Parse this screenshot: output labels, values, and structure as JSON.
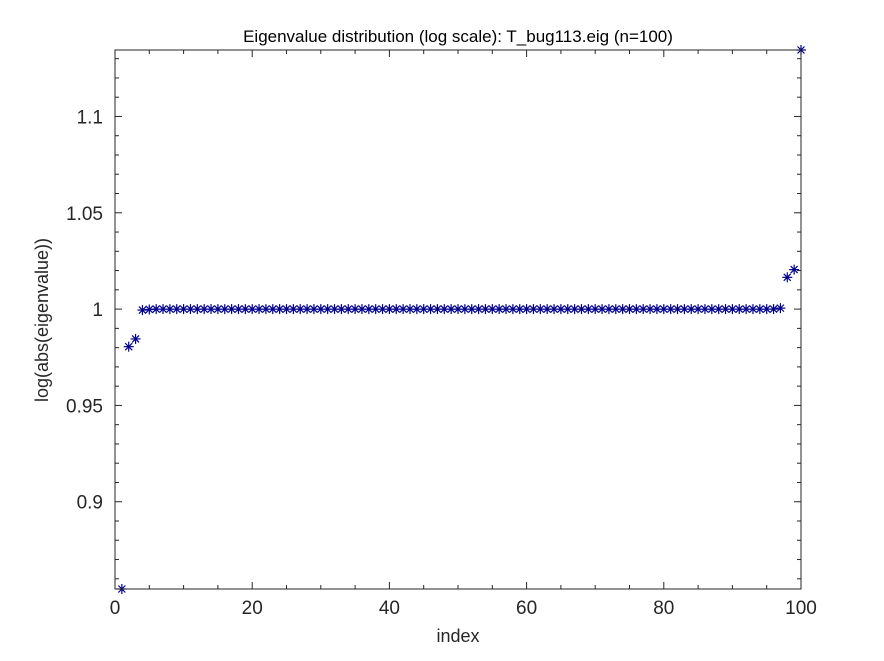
{
  "chart_data": {
    "type": "scatter",
    "title": "Eigenvalue distribution (log scale): T_bug113.eig (n=100)",
    "xlabel": "index",
    "ylabel": "log(abs(eigenvalue))",
    "xlim": [
      0,
      100
    ],
    "ylim": [
      0.8547,
      1.1345
    ],
    "xticks": [
      0,
      20,
      40,
      60,
      80,
      100
    ],
    "xtick_labels": [
      "0",
      "20",
      "40",
      "60",
      "80",
      "100"
    ],
    "yticks": [
      0.9,
      0.95,
      1,
      1.05,
      1.1
    ],
    "ytick_labels": [
      "0.9",
      "0.95",
      "1",
      "1.05",
      "1.1"
    ],
    "grid": false,
    "marker": "asterisk",
    "marker_color": "#00008b",
    "series": [
      {
        "x": [
          1,
          2,
          3,
          4,
          5,
          6,
          7,
          8,
          9,
          10,
          11,
          12,
          13,
          14,
          15,
          16,
          17,
          18,
          19,
          20,
          21,
          22,
          23,
          24,
          25,
          26,
          27,
          28,
          29,
          30,
          31,
          32,
          33,
          34,
          35,
          36,
          37,
          38,
          39,
          40,
          41,
          42,
          43,
          44,
          45,
          46,
          47,
          48,
          49,
          50,
          51,
          52,
          53,
          54,
          55,
          56,
          57,
          58,
          59,
          60,
          61,
          62,
          63,
          64,
          65,
          66,
          67,
          68,
          69,
          70,
          71,
          72,
          73,
          74,
          75,
          76,
          77,
          78,
          79,
          80,
          81,
          82,
          83,
          84,
          85,
          86,
          87,
          88,
          89,
          90,
          91,
          92,
          93,
          94,
          95,
          96,
          97,
          98,
          99,
          100
        ],
        "y": [
          0.8547,
          0.9805,
          0.9845,
          0.9995,
          0.9998,
          1.0,
          1.0,
          1.0,
          1.0,
          1.0,
          1.0,
          1.0,
          1.0,
          1.0,
          1.0,
          1.0,
          1.0,
          1.0,
          1.0,
          1.0,
          1.0,
          1.0,
          1.0,
          1.0,
          1.0,
          1.0,
          1.0,
          1.0,
          1.0,
          1.0,
          1.0,
          1.0,
          1.0,
          1.0,
          1.0,
          1.0,
          1.0,
          1.0,
          1.0,
          1.0,
          1.0,
          1.0,
          1.0,
          1.0,
          1.0,
          1.0,
          1.0,
          1.0,
          1.0,
          1.0,
          1.0,
          1.0,
          1.0,
          1.0,
          1.0,
          1.0,
          1.0,
          1.0,
          1.0,
          1.0,
          1.0,
          1.0,
          1.0,
          1.0,
          1.0,
          1.0,
          1.0,
          1.0,
          1.0,
          1.0,
          1.0,
          1.0,
          1.0,
          1.0,
          1.0,
          1.0,
          1.0,
          1.0,
          1.0,
          1.0,
          1.0,
          1.0,
          1.0,
          1.0,
          1.0,
          1.0,
          1.0,
          1.0,
          1.0,
          1.0,
          1.0,
          1.0,
          1.0,
          1.0,
          1.0,
          1.0,
          1.0005,
          1.0165,
          1.0205,
          1.1345
        ]
      }
    ]
  }
}
